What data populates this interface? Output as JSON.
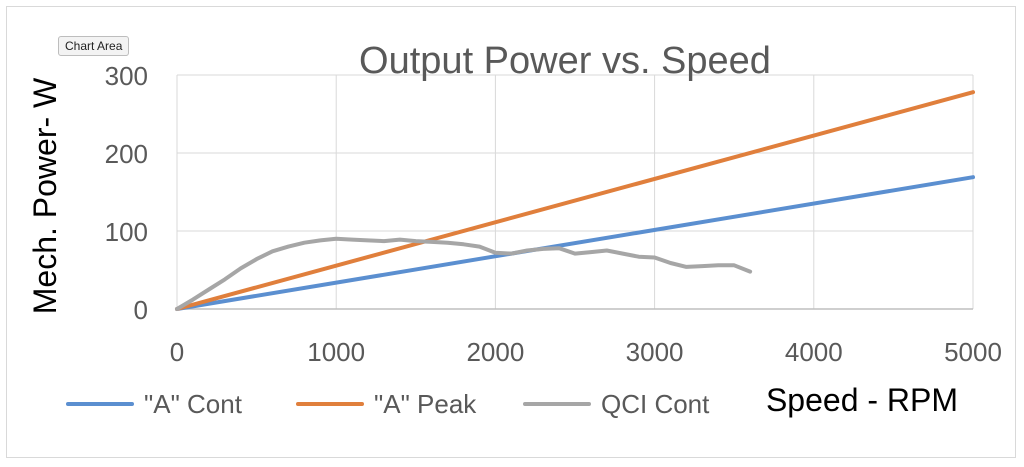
{
  "tooltip": "Chart Area",
  "chart_data": {
    "type": "line",
    "title": "Output Power vs. Speed",
    "xlabel": "Speed - RPM",
    "ylabel": "Mech. Power- W",
    "xlim": [
      0,
      5000
    ],
    "ylim": [
      0,
      300
    ],
    "xticks": [
      "0",
      "1000",
      "2000",
      "3000",
      "4000",
      "5000"
    ],
    "yticks": [
      "0",
      "100",
      "200",
      "300"
    ],
    "grid": true,
    "legend": "bottom",
    "series": [
      {
        "name": "\"A\" Cont",
        "color": "#5b8fd0",
        "points": [
          [
            0,
            0
          ],
          [
            5000,
            169
          ]
        ]
      },
      {
        "name": "\"A\" Peak",
        "color": "#e07f3c",
        "points": [
          [
            0,
            0
          ],
          [
            5000,
            278
          ]
        ]
      },
      {
        "name": "QCI Cont",
        "color": "#a6a6a6",
        "points": [
          [
            0,
            0
          ],
          [
            100,
            12
          ],
          [
            200,
            25
          ],
          [
            300,
            38
          ],
          [
            400,
            52
          ],
          [
            500,
            64
          ],
          [
            600,
            74
          ],
          [
            700,
            80
          ],
          [
            800,
            85
          ],
          [
            900,
            88
          ],
          [
            1000,
            90
          ],
          [
            1100,
            89
          ],
          [
            1200,
            88
          ],
          [
            1300,
            87
          ],
          [
            1400,
            89
          ],
          [
            1500,
            87
          ],
          [
            1600,
            86
          ],
          [
            1700,
            85
          ],
          [
            1800,
            83
          ],
          [
            1900,
            80
          ],
          [
            2000,
            72
          ],
          [
            2100,
            71
          ],
          [
            2200,
            75
          ],
          [
            2300,
            77
          ],
          [
            2400,
            78
          ],
          [
            2500,
            71
          ],
          [
            2600,
            73
          ],
          [
            2700,
            75
          ],
          [
            2800,
            71
          ],
          [
            2900,
            67
          ],
          [
            3000,
            66
          ],
          [
            3100,
            59
          ],
          [
            3200,
            54
          ],
          [
            3300,
            55
          ],
          [
            3400,
            56
          ],
          [
            3500,
            56
          ],
          [
            3600,
            48
          ]
        ]
      }
    ]
  }
}
